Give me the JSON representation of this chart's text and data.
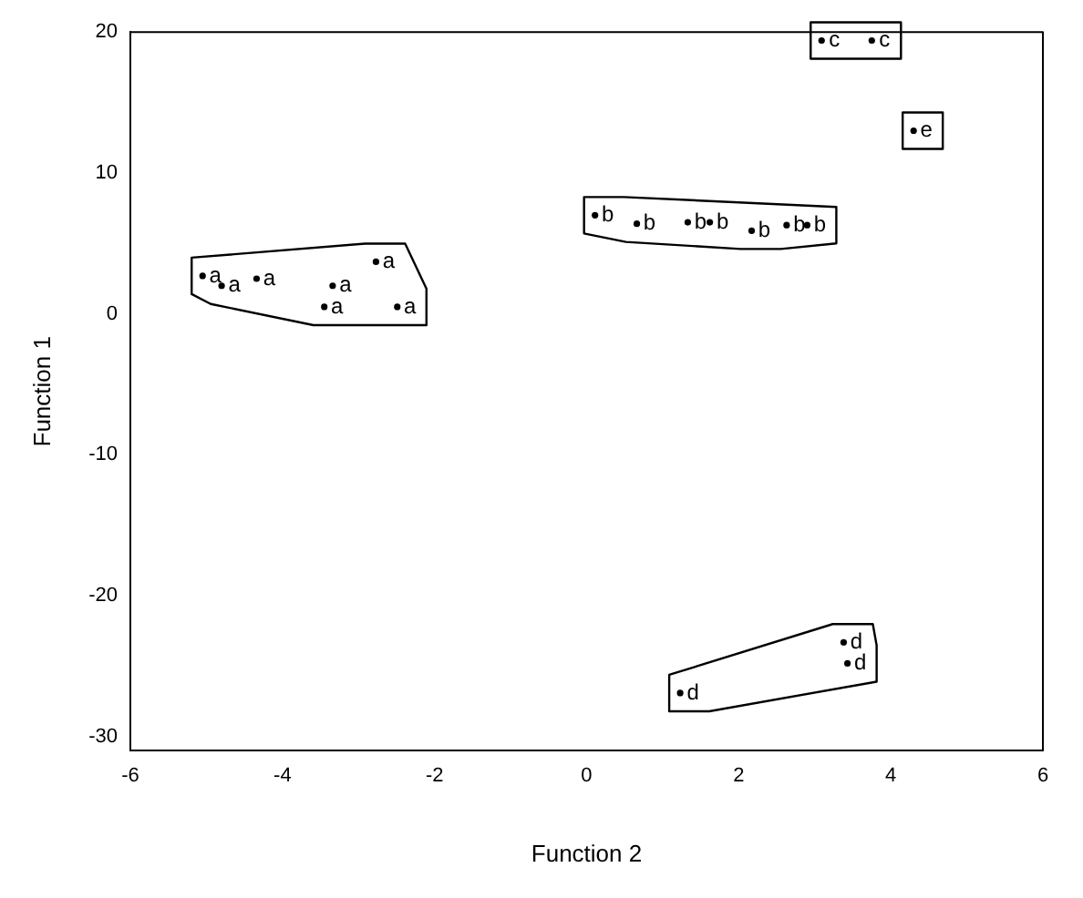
{
  "chart_data": {
    "type": "scatter",
    "xlabel": "Function 2",
    "ylabel": "Function 1",
    "xlim": [
      -6,
      6
    ],
    "xticks": [
      -6,
      -4,
      -2,
      0,
      2,
      4,
      6
    ],
    "ylim": [
      -31,
      20
    ],
    "yticks": [
      -30,
      -20,
      -10,
      0,
      10,
      20
    ],
    "grid": false,
    "legend": false,
    "series": [
      {
        "name": "a",
        "color": "#000000",
        "x": [
          -5.05,
          -4.8,
          -4.34,
          -3.34,
          -3.45,
          -2.77,
          -2.49
        ],
        "values": [
          2.7,
          2.0,
          2.5,
          2.0,
          0.5,
          3.7,
          0.5
        ]
      },
      {
        "name": "b",
        "color": "#000000",
        "x": [
          0.11,
          0.66,
          1.33,
          1.62,
          2.17,
          2.63,
          2.9
        ],
        "values": [
          7.0,
          6.4,
          6.5,
          6.5,
          5.9,
          6.3,
          6.3
        ]
      },
      {
        "name": "c",
        "color": "#000000",
        "x": [
          3.09,
          3.75
        ],
        "values": [
          19.4,
          19.4
        ]
      },
      {
        "name": "d",
        "color": "#000000",
        "x": [
          1.23,
          3.38,
          3.43
        ],
        "values": [
          -26.9,
          -23.3,
          -24.8
        ]
      },
      {
        "name": "e",
        "color": "#000000",
        "x": [
          4.3
        ],
        "values": [
          13.0
        ]
      }
    ]
  }
}
